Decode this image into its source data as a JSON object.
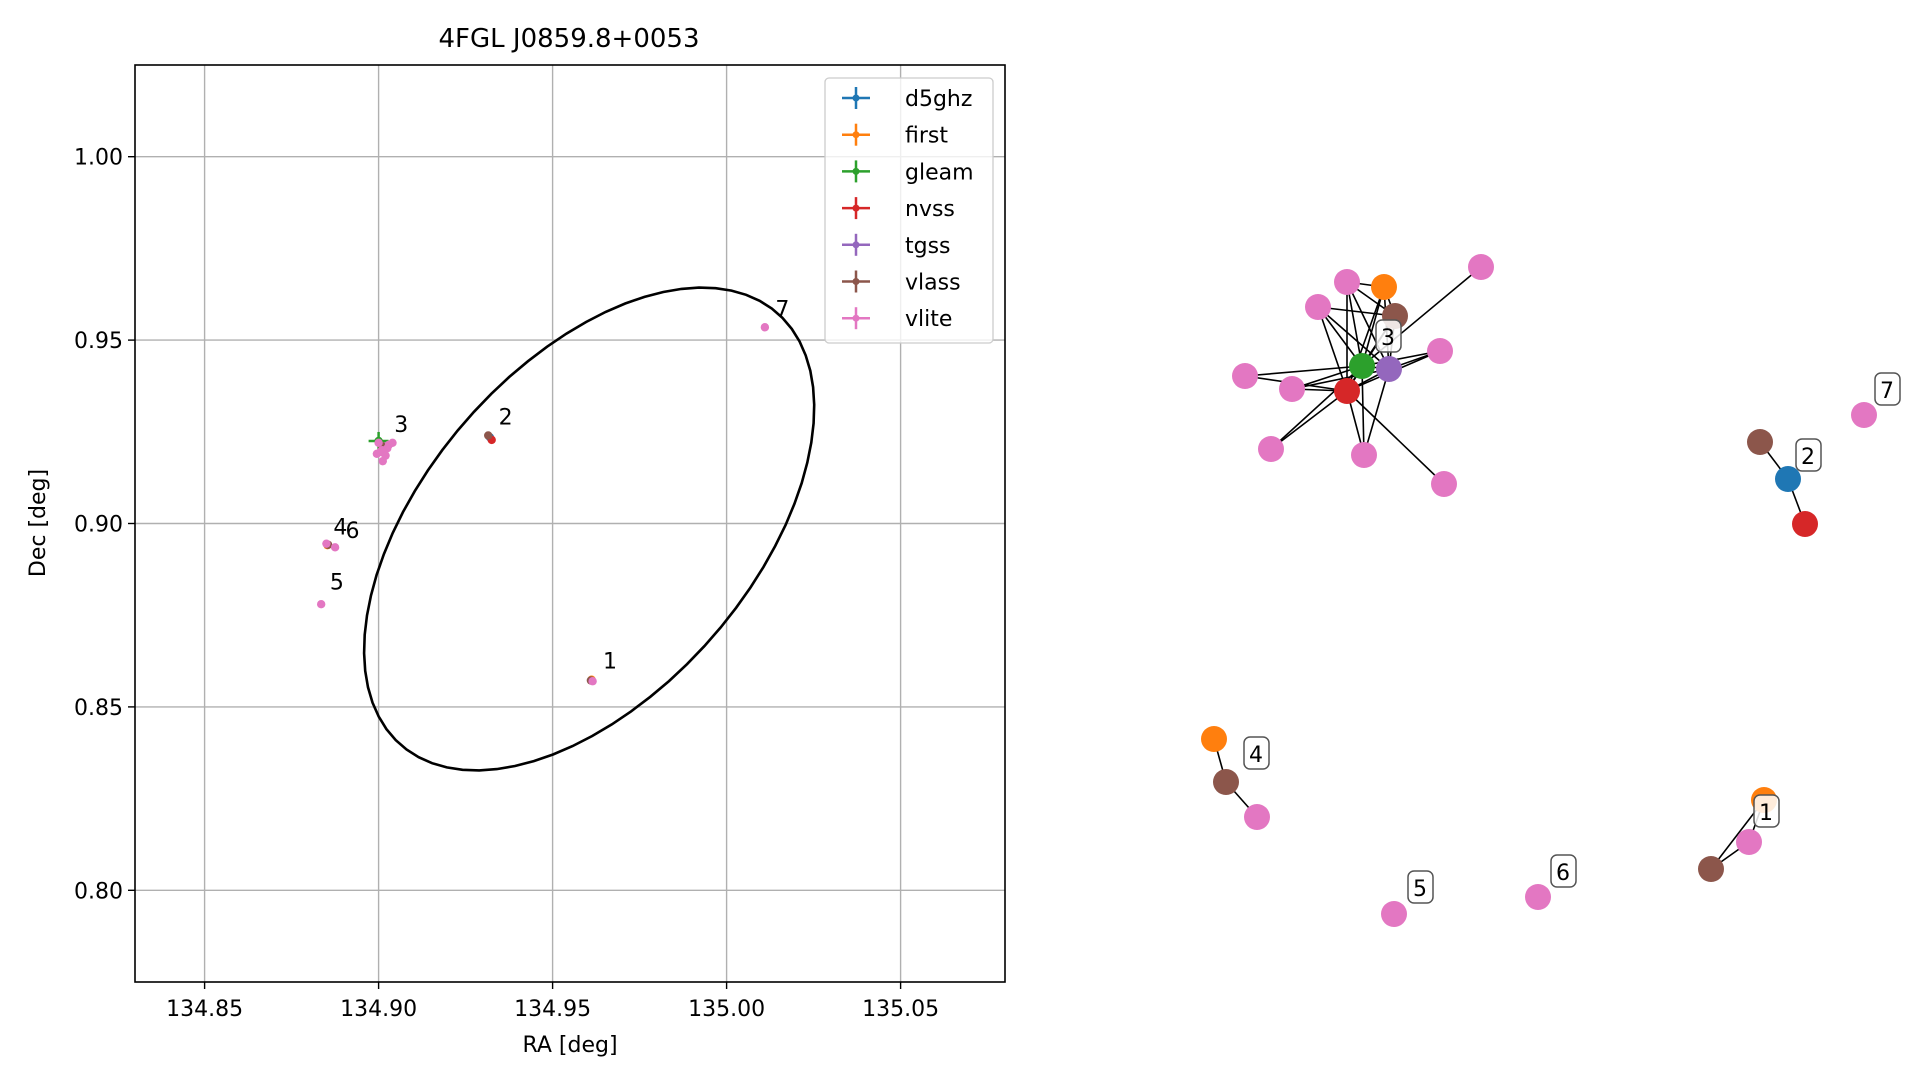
{
  "chart_data": [
    {
      "type": "scatter",
      "title": "4FGL J0859.8+0053",
      "xlabel": "RA [deg]",
      "ylabel": "Dec [deg]",
      "xlim": [
        134.83,
        135.08
      ],
      "ylim": [
        0.775,
        1.025
      ],
      "xticks": [
        "134.85",
        "134.90",
        "134.95",
        "135.00",
        "135.05"
      ],
      "xtick_values": [
        134.85,
        134.9,
        134.95,
        135.0,
        135.05
      ],
      "yticks": [
        "0.80",
        "0.85",
        "0.90",
        "0.95",
        "1.00"
      ],
      "ytick_values": [
        0.8,
        0.85,
        0.9,
        0.95,
        1.0
      ],
      "grid": true,
      "legend_position": "top-right",
      "series": [
        {
          "name": "d5ghz",
          "color": "#1f77b4",
          "points": [
            [
              134.932,
              0.9235
            ]
          ]
        },
        {
          "name": "first",
          "color": "#ff7f0e",
          "points": [
            [
              134.9012,
              0.9212
            ],
            [
              134.8853,
              0.8941
            ],
            [
              134.9612,
              0.8574
            ]
          ]
        },
        {
          "name": "gleam",
          "color": "#2ca02c",
          "points": [
            [
              134.9,
              0.9225
            ]
          ]
        },
        {
          "name": "nvss",
          "color": "#d62728",
          "points": [
            [
              134.9012,
              0.9205
            ],
            [
              134.9325,
              0.9228
            ]
          ]
        },
        {
          "name": "tgss",
          "color": "#9467bd",
          "points": [
            [
              134.9015,
              0.921
            ]
          ]
        },
        {
          "name": "vlass",
          "color": "#8c564b",
          "points": [
            [
              134.901,
              0.921
            ],
            [
              134.9315,
              0.924
            ],
            [
              134.8855,
              0.8942
            ],
            [
              134.961,
              0.8572
            ]
          ]
        },
        {
          "name": "vlite",
          "color": "#e377c2",
          "points": [
            [
              134.9005,
              0.9195
            ],
            [
              134.9025,
              0.9205
            ],
            [
              134.904,
              0.922
            ],
            [
              134.9012,
              0.917
            ],
            [
              134.903,
              0.9215
            ],
            [
              134.8995,
              0.919
            ],
            [
              134.901,
              0.92
            ],
            [
              134.902,
              0.9185
            ],
            [
              134.9,
              0.922
            ],
            [
              134.885,
              0.8945
            ],
            [
              134.8875,
              0.8935
            ],
            [
              134.8835,
              0.878
            ],
            [
              134.9615,
              0.857
            ],
            [
              135.011,
              0.9535
            ]
          ]
        }
      ],
      "ellipse": {
        "center": [
          134.9605,
          0.8985
        ],
        "a": 0.08,
        "b": 0.046,
        "angle_deg": 46,
        "color": "#000000"
      },
      "annotations": [
        {
          "text": "1",
          "x": 134.9645,
          "y": 0.8605
        },
        {
          "text": "2",
          "x": 134.9345,
          "y": 0.927
        },
        {
          "text": "3",
          "x": 134.9045,
          "y": 0.925
        },
        {
          "text": "4",
          "x": 134.887,
          "y": 0.897
        },
        {
          "text": "5",
          "x": 134.886,
          "y": 0.882
        },
        {
          "text": "6",
          "x": 134.8905,
          "y": 0.896
        },
        {
          "text": "7",
          "x": 135.014,
          "y": 0.9565
        }
      ]
    },
    {
      "type": "network",
      "nodes": [
        {
          "id": "a1",
          "color": "#e377c2",
          "x": 0.153,
          "y": 0.23
        },
        {
          "id": "a2",
          "color": "#ff7f0e",
          "x": 0.21,
          "y": 0.245
        },
        {
          "id": "a3",
          "color": "#e377c2",
          "x": 0.42,
          "y": 0.145
        },
        {
          "id": "a4",
          "color": "#e377c2",
          "x": 0.08,
          "y": 0.29
        },
        {
          "id": "a5",
          "color": "#8c564b",
          "x": 0.225,
          "y": 0.315
        },
        {
          "id": "a6",
          "color": "#e377c2",
          "x": 0.29,
          "y": 0.435
        },
        {
          "id": "a7",
          "color": "#2ca02c",
          "x": 0.15,
          "y": 0.545
        },
        {
          "id": "a8",
          "color": "#9467bd",
          "x": 0.19,
          "y": 0.56
        },
        {
          "id": "a9",
          "color": "#e377c2",
          "x": -0.037,
          "y": 0.6
        },
        {
          "id": "a10",
          "color": "#e377c2",
          "x": 0.033,
          "y": 0.64
        },
        {
          "id": "a11",
          "color": "#d62728",
          "x": 0.12,
          "y": 0.645
        },
        {
          "id": "a12",
          "color": "#e377c2",
          "x": 0.01,
          "y": 0.81
        },
        {
          "id": "a13",
          "color": "#e377c2",
          "x": 0.155,
          "y": 0.825
        },
        {
          "id": "a14",
          "color": "#e377c2",
          "x": 0.28,
          "y": 0.9
        },
        {
          "id": "b1",
          "color": "#8c564b",
          "x": 0.645,
          "y": 0.82
        },
        {
          "id": "b2",
          "color": "#1f77b4",
          "x": 0.69,
          "y": 0.91
        },
        {
          "id": "b3",
          "color": "#d62728",
          "x": 0.715,
          "y": 1.0
        },
        {
          "id": "c1",
          "color": "#e377c2",
          "x": 0.0,
          "y": 0.8
        },
        {
          "id": "d1",
          "color": "#ff7f0e",
          "x": 0.72,
          "y": 0.9
        },
        {
          "id": "d2",
          "color": "#e377c2",
          "x": 0.55,
          "y": 0.88
        },
        {
          "id": "d3",
          "color": "#8c564b",
          "x": 0.39,
          "y": 0.78
        },
        {
          "id": "e1",
          "color": "#ff7f0e",
          "x": 0.09,
          "y": 0.84
        },
        {
          "id": "e2",
          "color": "#8c564b",
          "x": 0.11,
          "y": 0.78
        },
        {
          "id": "e3",
          "color": "#e377c2",
          "x": 0.16,
          "y": 0.73
        },
        {
          "id": "f1",
          "color": "#e377c2",
          "x": 0.36,
          "y": 0.792
        },
        {
          "id": "g1",
          "color": "#e377c2",
          "x": 0.58,
          "y": 0.797
        }
      ],
      "edges": [
        [
          "a1",
          "a7"
        ],
        [
          "a1",
          "a11"
        ],
        [
          "a1",
          "a8"
        ],
        [
          "a1",
          "a5"
        ],
        [
          "a1",
          "a2"
        ],
        [
          "a2",
          "a7"
        ],
        [
          "a2",
          "a11"
        ],
        [
          "a2",
          "a8"
        ],
        [
          "a2",
          "a5"
        ],
        [
          "a3",
          "a7"
        ],
        [
          "a4",
          "a7"
        ],
        [
          "a4",
          "a11"
        ],
        [
          "a4",
          "a8"
        ],
        [
          "a4",
          "a5"
        ],
        [
          "a5",
          "a7"
        ],
        [
          "a5",
          "a11"
        ],
        [
          "a5",
          "a8"
        ],
        [
          "a6",
          "a7"
        ],
        [
          "a6",
          "a11"
        ],
        [
          "a6",
          "a8"
        ],
        [
          "a7",
          "a8"
        ],
        [
          "a7",
          "a11"
        ],
        [
          "a8",
          "a11"
        ],
        [
          "a9",
          "a7"
        ],
        [
          "a9",
          "a11"
        ],
        [
          "a10",
          "a7"
        ],
        [
          "a10",
          "a11"
        ],
        [
          "a10",
          "a8"
        ],
        [
          "a12",
          "a7"
        ],
        [
          "a12",
          "a11"
        ],
        [
          "a13",
          "a7"
        ],
        [
          "a13",
          "a11"
        ],
        [
          "a13",
          "a8"
        ],
        [
          "a14",
          "a11"
        ],
        [
          "b1",
          "b2"
        ],
        [
          "b2",
          "b3"
        ],
        [
          "d1",
          "d2"
        ],
        [
          "d2",
          "d3"
        ],
        [
          "d1",
          "d3"
        ],
        [
          "e1",
          "e2"
        ],
        [
          "e2",
          "e3"
        ]
      ],
      "labels": [
        {
          "text": "3"
        },
        {
          "text": "2"
        },
        {
          "text": "7"
        },
        {
          "text": "4"
        },
        {
          "text": "1"
        },
        {
          "text": "5"
        },
        {
          "text": "6"
        }
      ]
    }
  ]
}
